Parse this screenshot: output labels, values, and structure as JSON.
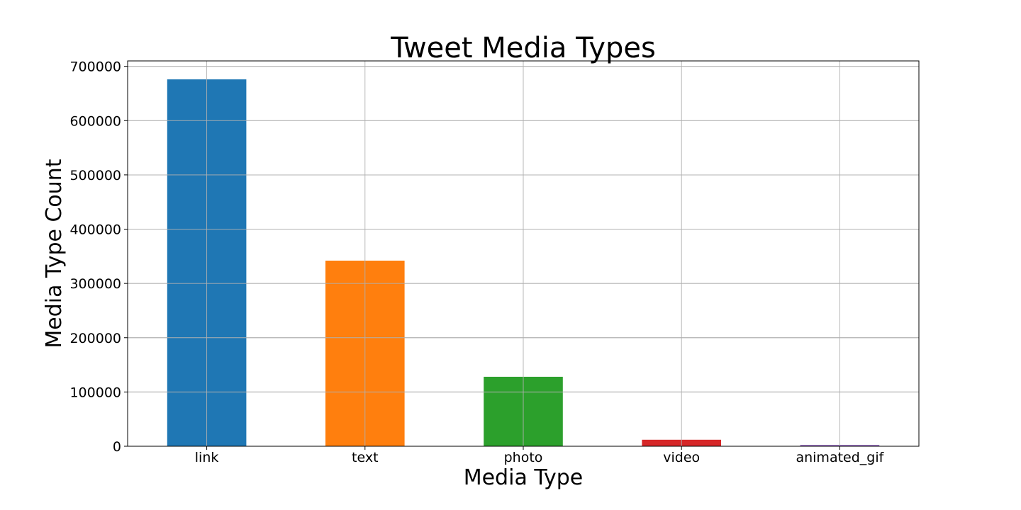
{
  "chart_data": {
    "type": "bar",
    "title": "Tweet Media Types",
    "xlabel": "Media Type",
    "ylabel": "Media Type Count",
    "categories": [
      "link",
      "text",
      "photo",
      "video",
      "animated_gif"
    ],
    "values": [
      676000,
      342000,
      128000,
      12000,
      2500
    ],
    "colors": [
      "#1f77b4",
      "#ff7f0e",
      "#2ca02c",
      "#d62728",
      "#9467bd"
    ],
    "ylim": [
      0,
      710000
    ],
    "yticks": [
      0,
      100000,
      200000,
      300000,
      400000,
      500000,
      600000,
      700000
    ],
    "grid": true,
    "legend": "none"
  }
}
